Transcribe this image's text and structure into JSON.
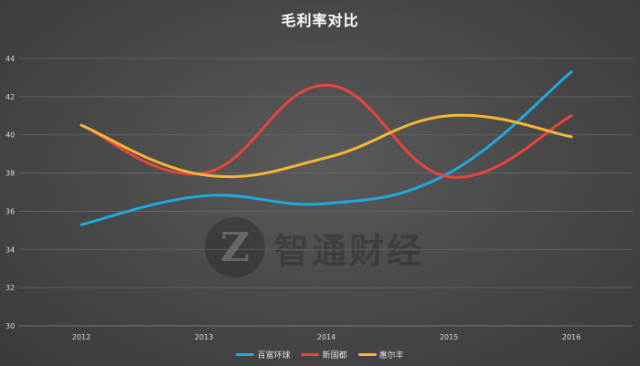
{
  "chart_data": {
    "type": "line",
    "title": "毛利率对比",
    "categories": [
      "2012",
      "2013",
      "2014",
      "2015",
      "2016"
    ],
    "ylim": [
      30,
      44
    ],
    "yticks": [
      30,
      32,
      34,
      36,
      38,
      40,
      42,
      44
    ],
    "grid": true,
    "legend_position": "bottom",
    "series": [
      {
        "name": "百富环球",
        "color": "#1fa9e1",
        "values": [
          35.3,
          36.8,
          36.4,
          38.0,
          43.3
        ]
      },
      {
        "name": "新国都",
        "color": "#e8453c",
        "values": [
          40.5,
          38.0,
          42.6,
          37.8,
          41.0
        ]
      },
      {
        "name": "惠尔丰",
        "color": "#f5b735",
        "values": [
          40.5,
          37.9,
          38.8,
          41.0,
          39.9
        ]
      }
    ]
  },
  "watermark": {
    "logo": "Z",
    "text": "智通财经"
  }
}
